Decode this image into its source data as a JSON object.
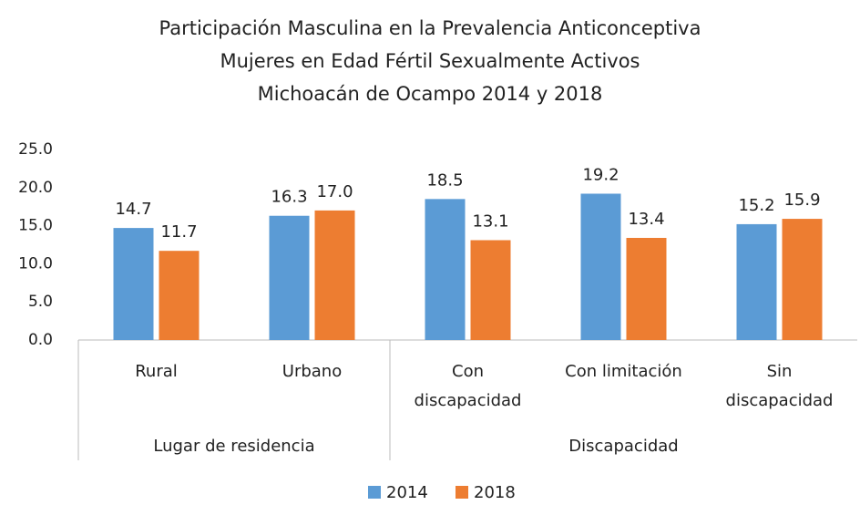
{
  "chart_data": {
    "type": "bar",
    "title": [
      "Participación Masculina en la Prevalencia Anticonceptiva",
      "Mujeres en Edad Fértil Sexualmente Activos",
      "Michoacán de Ocampo 2014 y 2018"
    ],
    "groups": [
      {
        "name": "Lugar de residencia",
        "categories": [
          "Rural",
          "Urbano"
        ]
      },
      {
        "name": "Discapacidad",
        "categories": [
          "Con discapacidad",
          "Con limitación",
          "Sin discapacidad"
        ]
      }
    ],
    "series": [
      {
        "name": "2014",
        "color": "#5b9bd5",
        "values": [
          14.7,
          16.3,
          18.5,
          19.2,
          15.2
        ]
      },
      {
        "name": "2018",
        "color": "#ed7d31",
        "values": [
          11.7,
          17.0,
          13.1,
          13.4,
          15.9
        ],
        "value_labels": [
          "11.7",
          "17.0",
          "13.1",
          "13.4",
          "15.9"
        ]
      }
    ],
    "ylim": [
      0,
      25
    ],
    "yticks": [
      {
        "value": 0,
        "label": "0.0"
      },
      {
        "value": 5,
        "label": "5.0"
      },
      {
        "value": 10,
        "label": "10.0"
      },
      {
        "value": 15,
        "label": "15.0"
      },
      {
        "value": 20,
        "label": "20.0"
      },
      {
        "value": 25,
        "label": "25.0"
      }
    ],
    "legend": "bottom"
  }
}
